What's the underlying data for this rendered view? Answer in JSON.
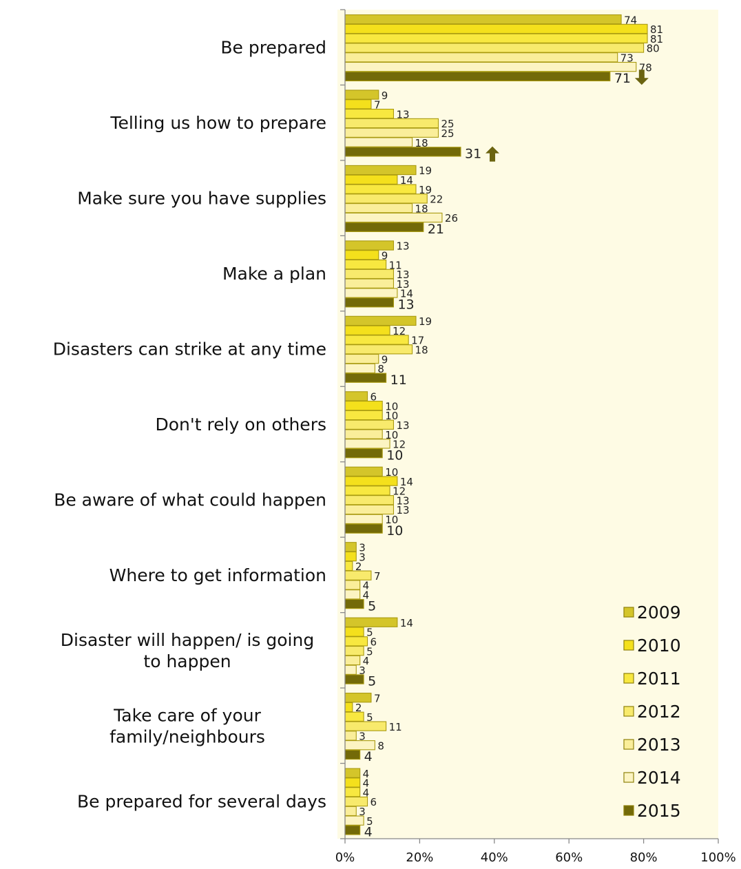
{
  "chart_data": {
    "type": "bar",
    "orientation": "horizontal",
    "categories": [
      "Be prepared",
      "Telling us how to prepare",
      "Make sure you have supplies",
      "Make a plan",
      "Disasters can strike at any time",
      "Don't rely on others",
      "Be aware of what could happen",
      "Where to get information",
      "Disaster will happen/ is going to happen",
      "Take care of your family/neighbours",
      "Be prepared for several days"
    ],
    "series": [
      {
        "name": "2009",
        "color": "#d4c52a",
        "values": [
          74,
          9,
          19,
          13,
          19,
          6,
          10,
          3,
          14,
          7,
          4
        ]
      },
      {
        "name": "2010",
        "color": "#f4e01c",
        "values": [
          81,
          7,
          14,
          9,
          12,
          10,
          14,
          3,
          5,
          2,
          4
        ]
      },
      {
        "name": "2011",
        "color": "#f8e840",
        "values": [
          81,
          13,
          19,
          11,
          17,
          10,
          12,
          2,
          6,
          5,
          4
        ]
      },
      {
        "name": "2012",
        "color": "#f8ea6c",
        "values": [
          80,
          25,
          22,
          13,
          18,
          13,
          13,
          7,
          5,
          11,
          6
        ]
      },
      {
        "name": "2013",
        "color": "#faee9a",
        "values": [
          73,
          25,
          18,
          13,
          9,
          10,
          13,
          4,
          4,
          3,
          3
        ]
      },
      {
        "name": "2014",
        "color": "#fcf4c2",
        "values": [
          78,
          18,
          26,
          14,
          8,
          12,
          10,
          4,
          3,
          8,
          5
        ]
      },
      {
        "name": "2015",
        "color": "#736a08",
        "values": [
          71,
          31,
          21,
          13,
          11,
          10,
          10,
          5,
          5,
          4,
          4
        ]
      }
    ],
    "xlim": [
      0,
      100
    ],
    "x_ticks": [
      "0%",
      "20%",
      "40%",
      "60%",
      "80%",
      "100%"
    ],
    "legend_position": "bottom-right",
    "plot_background": "#fefbe4",
    "annotations": [
      {
        "category": "Be prepared",
        "series": "2015",
        "marker": "down-arrow"
      },
      {
        "category": "Telling us how to prepare",
        "series": "2015",
        "marker": "up-arrow"
      }
    ],
    "arrow_color": "#6b6411"
  }
}
